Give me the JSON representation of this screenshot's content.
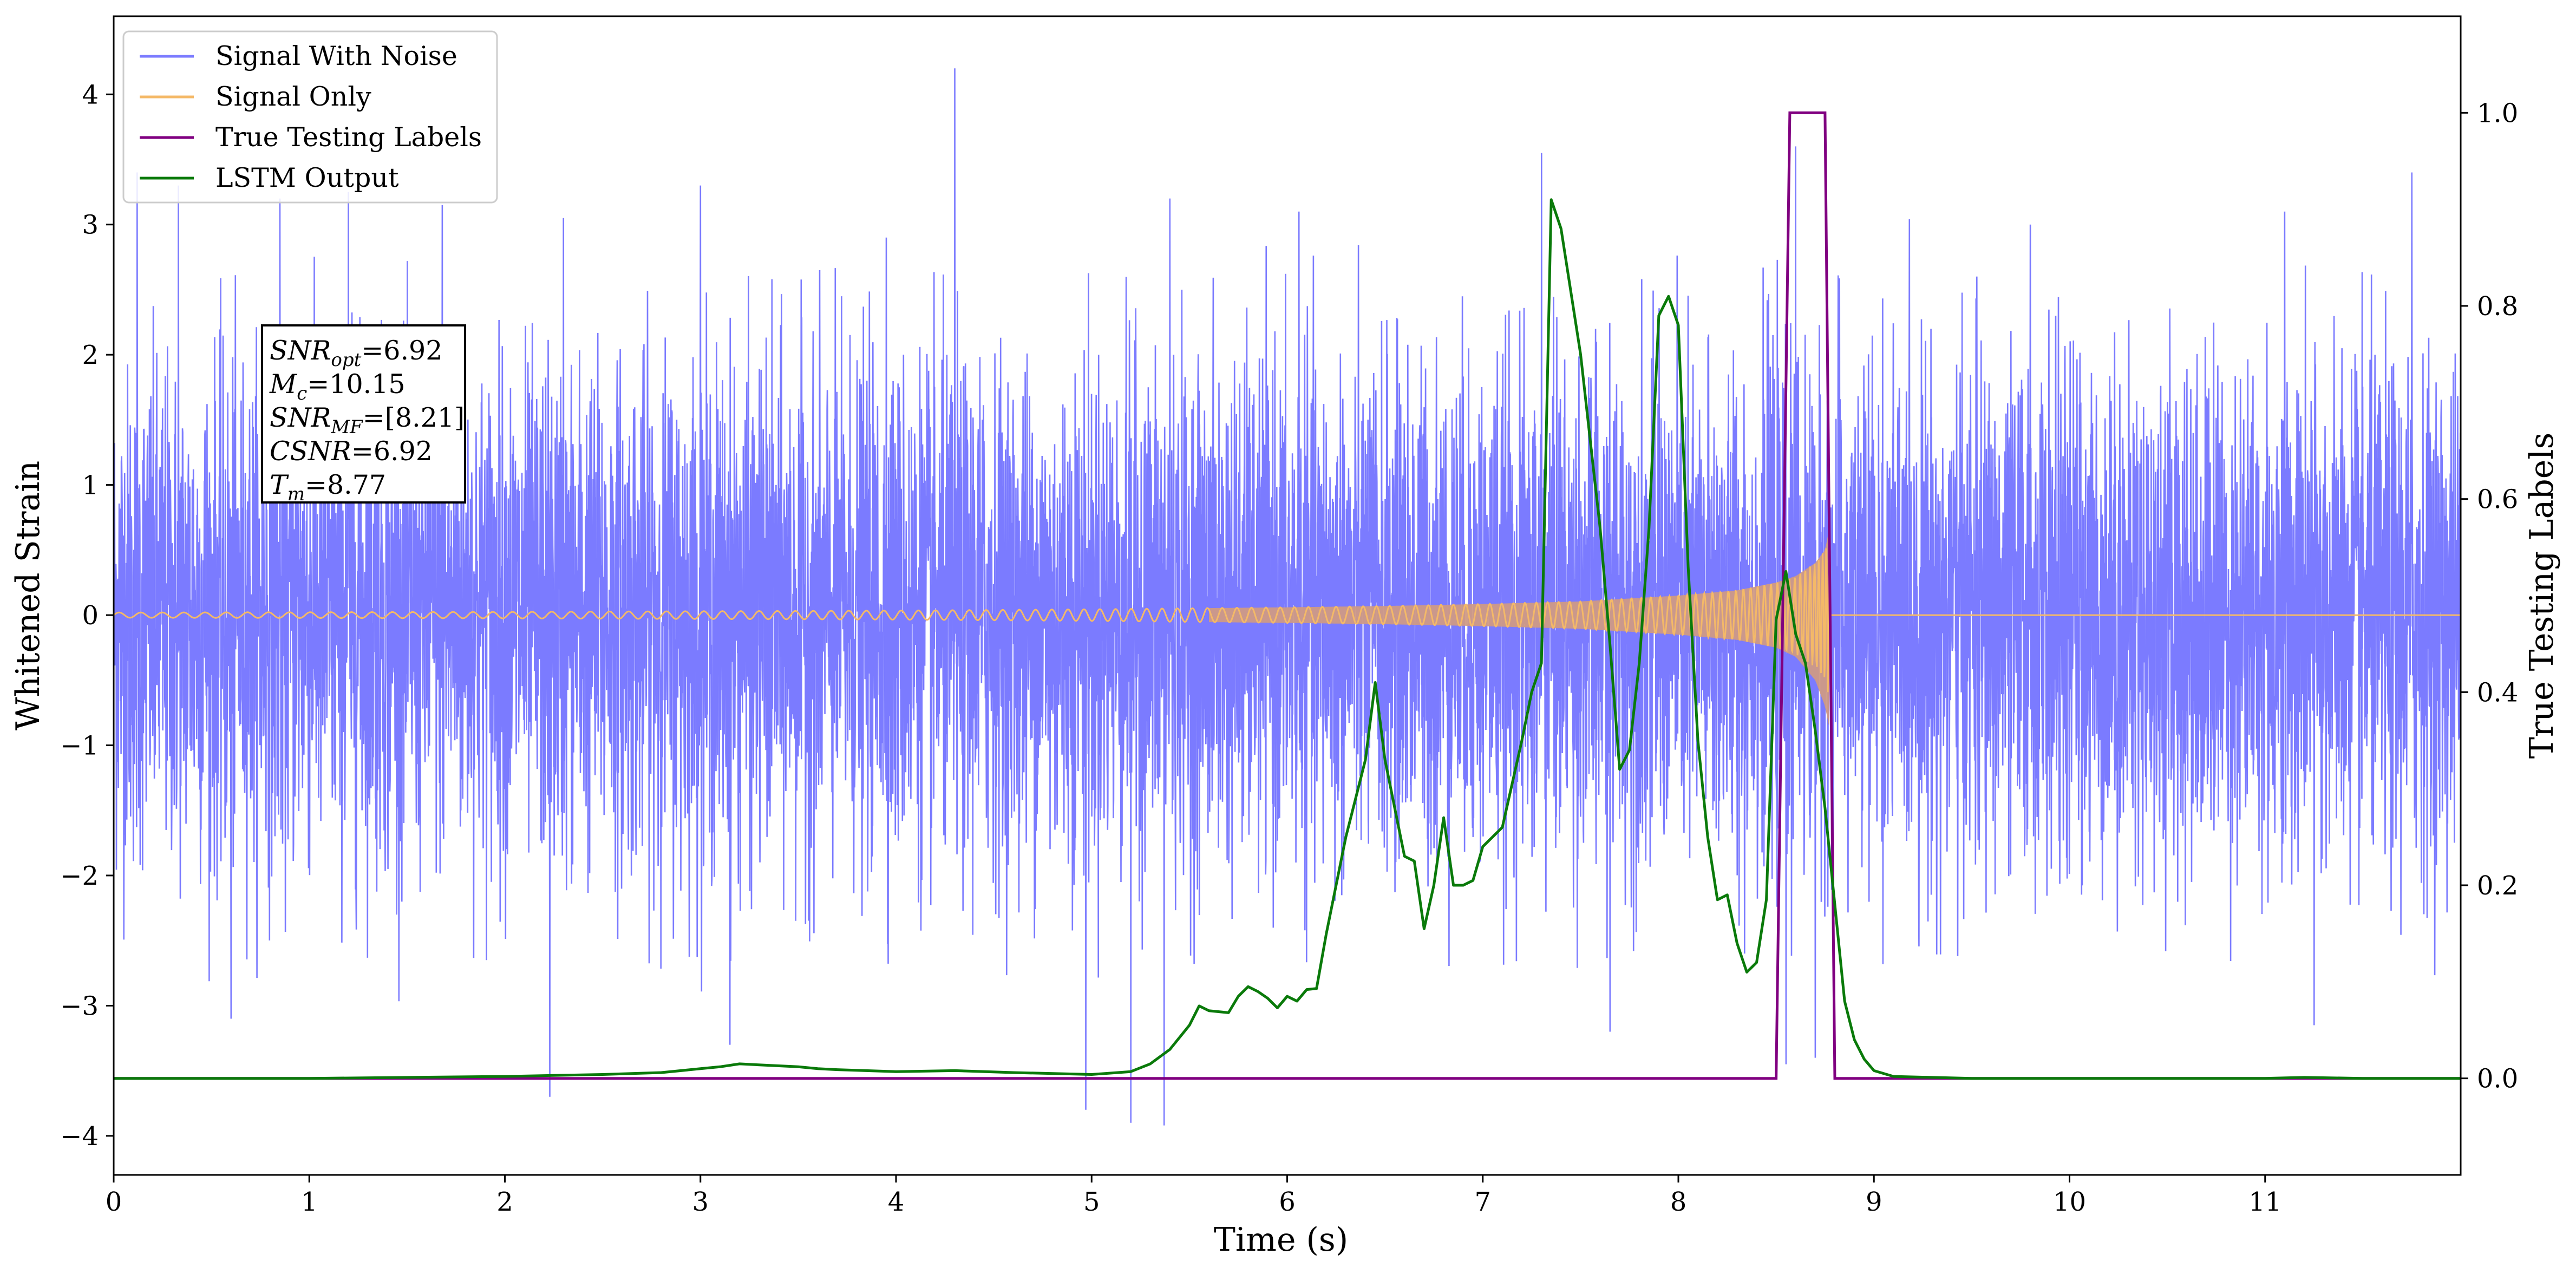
{
  "chart_data": {
    "type": "line",
    "xlabel": "Time (s)",
    "ylabel": "Whitened Strain",
    "ylabel_right": "True Testing Labels",
    "xlim": [
      0,
      12
    ],
    "ylim": [
      -4.3,
      4.6
    ],
    "ylim_right": [
      -0.1,
      1.1
    ],
    "x_ticks": [
      "0",
      "1",
      "2",
      "3",
      "4",
      "5",
      "6",
      "7",
      "8",
      "9",
      "10",
      "11"
    ],
    "y_ticks": [
      "−4",
      "−3",
      "−2",
      "−1",
      "0",
      "1",
      "2",
      "3",
      "4"
    ],
    "y_ticks_right": [
      "0.0",
      "0.2",
      "0.4",
      "0.6",
      "0.8",
      "1.0"
    ],
    "grid": false,
    "legend_position": "top-left",
    "colors": {
      "noise": "#7b7bff",
      "signal": "#f4b968",
      "labels": "#800080",
      "lstm": "#0a7a0a",
      "envelope": "#cf9a86"
    },
    "series": [
      {
        "name": "Signal With Noise",
        "axis": "left",
        "description_values": {
          "typical_range": [
            -1.8,
            1.8
          ],
          "peaks_x": [
            0.12,
            0.33,
            0.85,
            1.2,
            1.68,
            2.3,
            3.0,
            3.95,
            4.3,
            5.4,
            6.06,
            7.3,
            8.6,
            9.8,
            11.1,
            11.75
          ],
          "peaks_y": [
            3.4,
            3.3,
            3.2,
            3.25,
            3.15,
            3.05,
            3.3,
            2.9,
            4.2,
            3.2,
            3.1,
            3.55,
            3.6,
            3.0,
            3.1,
            3.4
          ],
          "troughs_x": [
            0.6,
            2.23,
            3.15,
            4.97,
            5.2,
            5.37,
            7.65,
            8.55,
            8.7,
            11.25
          ],
          "troughs_y": [
            -3.1,
            -3.7,
            -3.3,
            -3.8,
            -3.9,
            -3.92,
            -3.2,
            -3.45,
            -3.4,
            -3.15
          ]
        }
      },
      {
        "name": "Signal Only",
        "axis": "left",
        "envelope": {
          "x": [
            0,
            2,
            4,
            5,
            6,
            6.5,
            7,
            7.5,
            8,
            8.3,
            8.5,
            8.6,
            8.7,
            8.75,
            8.77
          ],
          "amp": [
            0.02,
            0.025,
            0.035,
            0.045,
            0.06,
            0.07,
            0.085,
            0.105,
            0.15,
            0.19,
            0.25,
            0.3,
            0.4,
            0.5,
            0.65
          ],
          "amp_low": [
            0.02,
            0.025,
            0.035,
            0.045,
            0.06,
            0.07,
            0.085,
            0.105,
            0.15,
            0.19,
            0.25,
            0.32,
            0.5,
            0.7,
            0.85
          ]
        }
      },
      {
        "name": "True Testing Labels",
        "axis": "right",
        "x": [
          0,
          8.5,
          8.57,
          8.75,
          8.8,
          12
        ],
        "y": [
          0,
          0,
          1,
          1,
          0,
          0
        ]
      },
      {
        "name": "LSTM Output",
        "axis": "right",
        "x": [
          0,
          1,
          2,
          2.5,
          2.8,
          3.0,
          3.1,
          3.2,
          3.3,
          3.4,
          3.5,
          3.6,
          3.7,
          4.0,
          4.3,
          4.6,
          5.0,
          5.2,
          5.3,
          5.4,
          5.5,
          5.55,
          5.6,
          5.7,
          5.75,
          5.8,
          5.85,
          5.9,
          5.95,
          6.0,
          6.05,
          6.1,
          6.15,
          6.2,
          6.3,
          6.4,
          6.45,
          6.5,
          6.6,
          6.65,
          6.7,
          6.75,
          6.8,
          6.85,
          6.9,
          6.95,
          7.0,
          7.1,
          7.2,
          7.25,
          7.3,
          7.35,
          7.4,
          7.5,
          7.55,
          7.6,
          7.65,
          7.7,
          7.75,
          7.8,
          7.85,
          7.9,
          7.95,
          8.0,
          8.05,
          8.1,
          8.15,
          8.2,
          8.25,
          8.3,
          8.35,
          8.4,
          8.45,
          8.5,
          8.55,
          8.6,
          8.65,
          8.7,
          8.75,
          8.8,
          8.85,
          8.9,
          8.95,
          9.0,
          9.1,
          9.5,
          10,
          11,
          11.2,
          11.5,
          12
        ],
        "y": [
          0,
          0,
          0.002,
          0.004,
          0.006,
          0.01,
          0.012,
          0.015,
          0.014,
          0.013,
          0.012,
          0.01,
          0.009,
          0.007,
          0.008,
          0.006,
          0.004,
          0.007,
          0.015,
          0.03,
          0.055,
          0.075,
          0.07,
          0.068,
          0.085,
          0.095,
          0.09,
          0.083,
          0.073,
          0.085,
          0.08,
          0.092,
          0.093,
          0.15,
          0.25,
          0.33,
          0.41,
          0.33,
          0.23,
          0.225,
          0.155,
          0.2,
          0.27,
          0.2,
          0.2,
          0.205,
          0.24,
          0.26,
          0.35,
          0.4,
          0.43,
          0.91,
          0.88,
          0.75,
          0.66,
          0.57,
          0.45,
          0.32,
          0.34,
          0.43,
          0.57,
          0.79,
          0.81,
          0.78,
          0.53,
          0.35,
          0.25,
          0.185,
          0.19,
          0.14,
          0.11,
          0.12,
          0.185,
          0.475,
          0.525,
          0.46,
          0.43,
          0.36,
          0.28,
          0.18,
          0.08,
          0.04,
          0.02,
          0.008,
          0.002,
          0,
          0,
          0,
          0.001,
          0,
          0
        ]
      }
    ]
  },
  "legend": {
    "items": [
      {
        "label": "Signal With Noise",
        "color": "#7b7bff"
      },
      {
        "label": "Signal Only",
        "color": "#f4b968"
      },
      {
        "label": "True Testing Labels",
        "color": "#800080"
      },
      {
        "label": "LSTM Output",
        "color": "#0a7a0a"
      }
    ]
  },
  "annotation": {
    "lines": [
      {
        "base": "SNR",
        "sub": "opt",
        "value": "=6.92"
      },
      {
        "base": "M",
        "sub": "c",
        "value": "=10.15"
      },
      {
        "base": "SNR",
        "sub": "MF",
        "value": "=[8.21]"
      },
      {
        "base": "CSNR",
        "sub": "",
        "value": "=6.92"
      },
      {
        "base": "T",
        "sub": "m",
        "value": "=8.77"
      }
    ]
  }
}
